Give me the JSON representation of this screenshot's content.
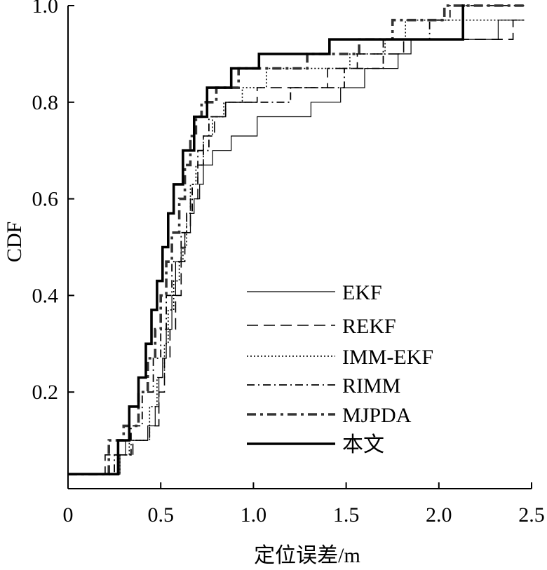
{
  "chart_data": {
    "type": "line",
    "title": "",
    "xlabel": "定位误差/m",
    "ylabel": "CDF",
    "xlim": [
      0,
      2.5
    ],
    "ylim": [
      0,
      1.0
    ],
    "x_ticks": [
      0,
      0.5,
      1.0,
      1.5,
      2.0,
      2.5
    ],
    "x_tick_labels": [
      "0",
      "0.5",
      "1.0",
      "1.5",
      "2.0",
      "2.5"
    ],
    "y_ticks": [
      0.2,
      0.4,
      0.6,
      0.8,
      1.0
    ],
    "y_tick_labels": [
      "0.2",
      "0.4",
      "0.6",
      "0.8",
      "1.0"
    ],
    "grid": false,
    "legend_position": "lower-right",
    "series": [
      {
        "name": "EKF",
        "style": "thin-solid",
        "color": "#000000",
        "x": [
          0.03,
          0.28,
          0.31,
          0.43,
          0.47,
          0.49,
          0.51,
          0.53,
          0.56,
          0.58,
          0.61,
          0.63,
          0.66,
          0.68,
          0.71,
          0.73,
          0.78,
          0.88,
          1.02,
          1.31,
          1.47,
          1.6,
          1.78,
          1.85,
          2.32,
          2.46
        ],
        "y": [
          0.03,
          0.07,
          0.1,
          0.13,
          0.17,
          0.23,
          0.27,
          0.33,
          0.4,
          0.47,
          0.5,
          0.53,
          0.57,
          0.6,
          0.63,
          0.67,
          0.7,
          0.73,
          0.77,
          0.8,
          0.83,
          0.87,
          0.9,
          0.93,
          0.97,
          0.97
        ]
      },
      {
        "name": "REKF",
        "style": "dashed",
        "color": "#000000",
        "x": [
          0.03,
          0.2,
          0.35,
          0.44,
          0.49,
          0.52,
          0.55,
          0.58,
          0.61,
          0.63,
          0.66,
          0.7,
          0.73,
          0.79,
          0.85,
          1.02,
          1.4,
          1.56,
          1.81,
          2.4,
          2.46
        ],
        "y": [
          0.03,
          0.07,
          0.1,
          0.13,
          0.2,
          0.27,
          0.33,
          0.4,
          0.47,
          0.53,
          0.6,
          0.67,
          0.73,
          0.77,
          0.8,
          0.83,
          0.87,
          0.9,
          0.93,
          0.97,
          0.97
        ]
      },
      {
        "name": "IMM-EKF",
        "style": "dotted",
        "color": "#000000",
        "x": [
          0.03,
          0.28,
          0.33,
          0.44,
          0.48,
          0.52,
          0.54,
          0.57,
          0.6,
          0.62,
          0.64,
          0.66,
          0.69,
          0.73,
          0.78,
          0.84,
          0.94,
          1.07,
          1.52,
          1.71,
          1.82,
          1.93,
          2.46
        ],
        "y": [
          0.03,
          0.07,
          0.1,
          0.17,
          0.23,
          0.3,
          0.37,
          0.43,
          0.47,
          0.5,
          0.57,
          0.63,
          0.67,
          0.73,
          0.77,
          0.8,
          0.83,
          0.87,
          0.9,
          0.93,
          0.97,
          0.97,
          0.97
        ]
      },
      {
        "name": "RIMM",
        "style": "dash-dot",
        "color": "#000000",
        "x": [
          0.03,
          0.25,
          0.34,
          0.4,
          0.46,
          0.5,
          0.53,
          0.56,
          0.61,
          0.64,
          0.67,
          0.7,
          0.76,
          0.85,
          1.2,
          1.49,
          1.7,
          1.95,
          2.06,
          2.46
        ],
        "y": [
          0.03,
          0.07,
          0.13,
          0.2,
          0.27,
          0.33,
          0.4,
          0.47,
          0.53,
          0.57,
          0.63,
          0.7,
          0.77,
          0.8,
          0.83,
          0.87,
          0.93,
          0.97,
          1.0,
          1.0
        ]
      },
      {
        "name": "MJPDA",
        "style": "thick-dash-dot",
        "color": "#333333",
        "x": [
          0.03,
          0.22,
          0.3,
          0.38,
          0.43,
          0.47,
          0.5,
          0.53,
          0.56,
          0.6,
          0.63,
          0.66,
          0.69,
          0.72,
          0.8,
          0.92,
          1.29,
          1.57,
          1.75,
          2.03,
          2.46
        ],
        "y": [
          0.03,
          0.1,
          0.13,
          0.2,
          0.27,
          0.33,
          0.4,
          0.47,
          0.53,
          0.6,
          0.67,
          0.73,
          0.77,
          0.8,
          0.83,
          0.87,
          0.9,
          0.93,
          0.97,
          1.0,
          1.0
        ]
      },
      {
        "name": "本文",
        "style": "thick-solid",
        "color": "#000000",
        "x": [
          0.03,
          0.27,
          0.33,
          0.38,
          0.42,
          0.45,
          0.48,
          0.51,
          0.54,
          0.57,
          0.62,
          0.68,
          0.75,
          0.88,
          1.03,
          1.41,
          2.13,
          2.14
        ],
        "y": [
          0.03,
          0.1,
          0.17,
          0.23,
          0.3,
          0.37,
          0.43,
          0.5,
          0.57,
          0.63,
          0.7,
          0.77,
          0.83,
          0.87,
          0.9,
          0.93,
          1.0,
          1.0
        ]
      }
    ]
  }
}
